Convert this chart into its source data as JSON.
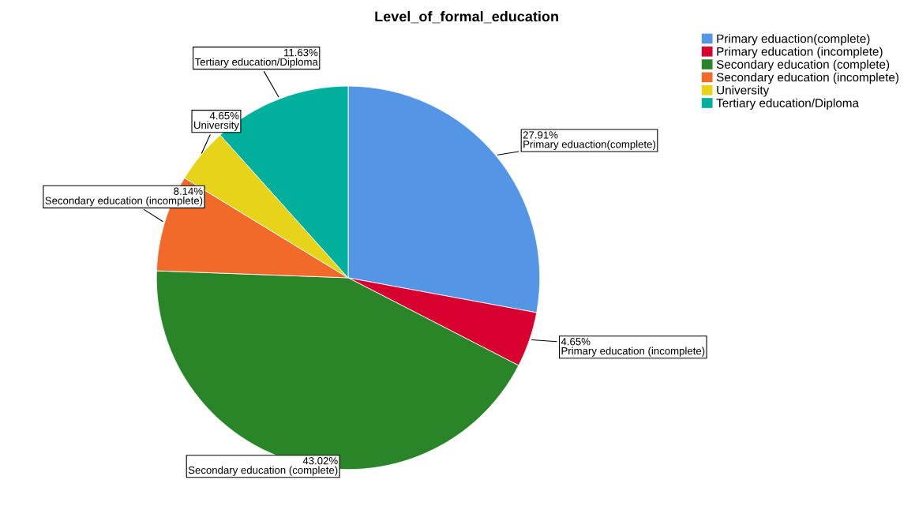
{
  "chart_data": {
    "type": "pie",
    "title": "Level_of_formal_education",
    "categories": [
      "Primary eduaction(complete)",
      "Primary education (incomplete)",
      "Secondary education (complete)",
      "Secondary education (incomplete)",
      "University",
      "Tertiary education/Diploma"
    ],
    "values": [
      27.91,
      4.65,
      43.02,
      8.14,
      4.65,
      11.63
    ],
    "value_labels": [
      "27.91%",
      "4.65%",
      "43.02%",
      "8.14%",
      "4.65%",
      "11.63%"
    ],
    "colors": [
      "#5595e6",
      "#d7002f",
      "#2a8529",
      "#f26a2a",
      "#e6d31a",
      "#00b09c"
    ],
    "legend": "top right"
  }
}
